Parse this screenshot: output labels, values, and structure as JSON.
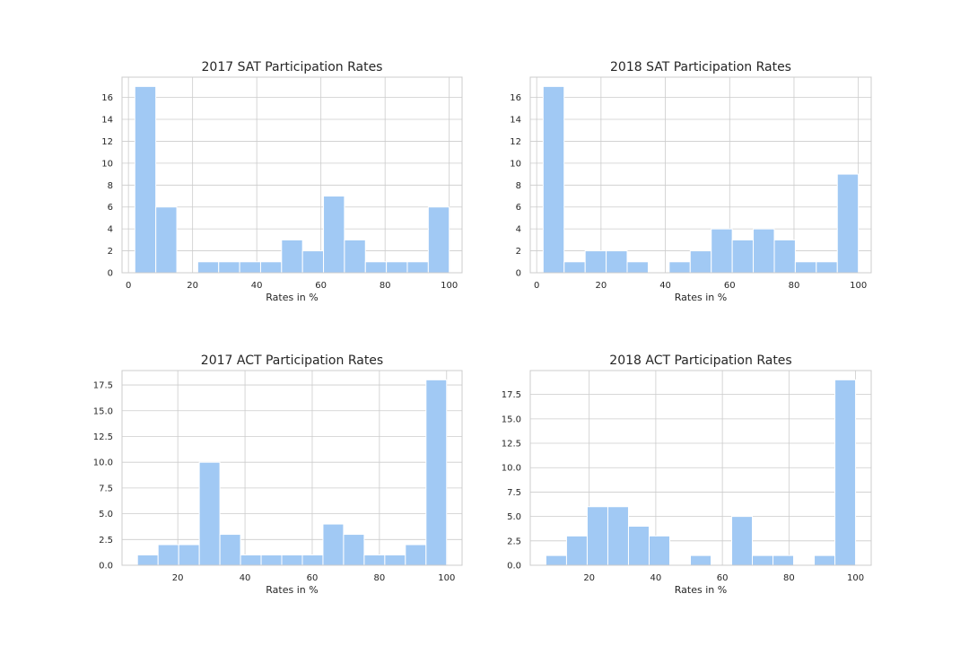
{
  "chart_data": [
    {
      "type": "bar",
      "title": "2017 SAT Participation Rates",
      "xlabel": "Rates in %",
      "ylabel": "",
      "bar_color": "#a1c9f4",
      "grid": true,
      "xlim": [
        -2.0,
        104.0
      ],
      "ylim": [
        0,
        17.85
      ],
      "xticks": [
        0,
        20,
        40,
        60,
        80,
        100
      ],
      "yticks": [
        0,
        2,
        4,
        6,
        8,
        10,
        12,
        14,
        16
      ],
      "x_tick_labels": [
        "0",
        "20",
        "40",
        "60",
        "80",
        "100"
      ],
      "y_tick_labels": [
        "0",
        "2",
        "4",
        "6",
        "8",
        "10",
        "12",
        "14",
        "16"
      ],
      "bin_edges": [
        2,
        8.53,
        15.07,
        21.6,
        28.13,
        34.67,
        41.2,
        47.73,
        54.27,
        60.8,
        67.33,
        73.87,
        80.4,
        86.93,
        93.47,
        100
      ],
      "values": [
        17,
        6,
        0,
        1,
        1,
        1,
        1,
        3,
        2,
        7,
        3,
        1,
        1,
        1,
        6
      ]
    },
    {
      "type": "bar",
      "title": "2018 SAT Participation Rates",
      "xlabel": "Rates in %",
      "ylabel": "",
      "bar_color": "#a1c9f4",
      "grid": true,
      "xlim": [
        -2.0,
        104.0
      ],
      "ylim": [
        0,
        17.85
      ],
      "xticks": [
        0,
        20,
        40,
        60,
        80,
        100
      ],
      "yticks": [
        0,
        2,
        4,
        6,
        8,
        10,
        12,
        14,
        16
      ],
      "x_tick_labels": [
        "0",
        "20",
        "40",
        "60",
        "80",
        "100"
      ],
      "y_tick_labels": [
        "0",
        "2",
        "4",
        "6",
        "8",
        "10",
        "12",
        "14",
        "16"
      ],
      "bin_edges": [
        2,
        8.53,
        15.07,
        21.6,
        28.13,
        34.67,
        41.2,
        47.73,
        54.27,
        60.8,
        67.33,
        73.87,
        80.4,
        86.93,
        93.47,
        100
      ],
      "values": [
        17,
        1,
        2,
        2,
        1,
        0,
        1,
        2,
        4,
        3,
        4,
        3,
        1,
        1,
        9
      ]
    },
    {
      "type": "bar",
      "title": "2017 ACT Participation Rates",
      "xlabel": "Rates in %",
      "ylabel": "",
      "bar_color": "#a1c9f4",
      "grid": true,
      "xlim": [
        3.4,
        104.6
      ],
      "ylim": [
        0,
        18.9
      ],
      "xticks": [
        20,
        40,
        60,
        80,
        100
      ],
      "yticks": [
        0,
        2.5,
        5,
        7.5,
        10,
        12.5,
        15,
        17.5
      ],
      "x_tick_labels": [
        "20",
        "40",
        "60",
        "80",
        "100"
      ],
      "y_tick_labels": [
        "0.0",
        "2.5",
        "5.0",
        "7.5",
        "10.0",
        "12.5",
        "15.0",
        "17.5"
      ],
      "bin_edges": [
        8,
        14.13,
        20.27,
        26.4,
        32.53,
        38.67,
        44.8,
        50.93,
        57.07,
        63.2,
        69.33,
        75.47,
        81.6,
        87.73,
        93.87,
        100
      ],
      "values": [
        1,
        2,
        2,
        10,
        3,
        1,
        1,
        1,
        1,
        4,
        3,
        1,
        1,
        2,
        18
      ]
    },
    {
      "type": "bar",
      "title": "2018 ACT Participation Rates",
      "xlabel": "Rates in %",
      "ylabel": "",
      "bar_color": "#a1c9f4",
      "grid": true,
      "xlim": [
        2.3,
        104.7
      ],
      "ylim": [
        0,
        19.95
      ],
      "xticks": [
        20,
        40,
        60,
        80,
        100
      ],
      "yticks": [
        0,
        2.5,
        5,
        7.5,
        10,
        12.5,
        15,
        17.5
      ],
      "x_tick_labels": [
        "20",
        "40",
        "60",
        "80",
        "100"
      ],
      "y_tick_labels": [
        "0.0",
        "2.5",
        "5.0",
        "7.5",
        "10.0",
        "12.5",
        "15.0",
        "17.5"
      ],
      "bin_edges": [
        7,
        13.2,
        19.4,
        25.6,
        31.8,
        38,
        44.2,
        50.4,
        56.6,
        62.8,
        69,
        75.2,
        81.4,
        87.6,
        93.8,
        100
      ],
      "values": [
        1,
        3,
        6,
        6,
        4,
        3,
        0,
        1,
        0,
        5,
        1,
        1,
        0,
        1,
        19
      ]
    }
  ]
}
